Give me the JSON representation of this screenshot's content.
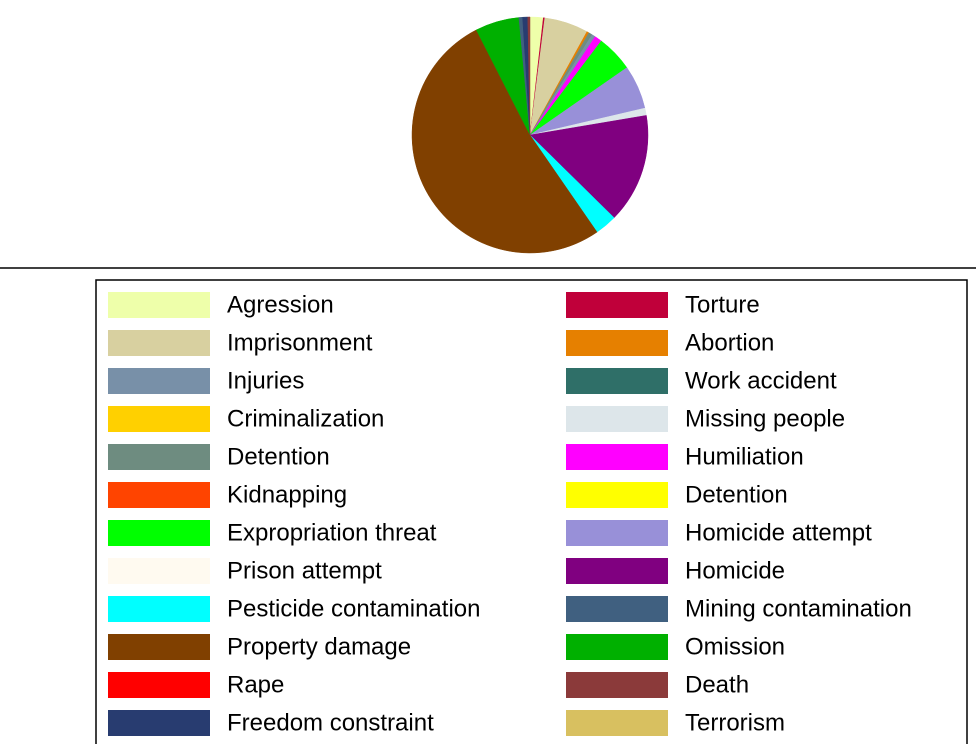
{
  "chart_data": {
    "type": "pie",
    "categories": [
      "Agression",
      "Torture",
      "Imprisonment",
      "Abortion",
      "Detention",
      "Injuries",
      "Humiliation",
      "Expropriation threat",
      "Homicide attempt",
      "Missing people",
      "Homicide",
      "Pesticide contamination",
      "Property damage",
      "Omission",
      "Mining contamination",
      "Freedom constraint",
      "Death",
      "Criminalization",
      "Kidnapping",
      "Prison attempt",
      "Rape",
      "Detention",
      "Work accident",
      "Terrorism"
    ],
    "values": [
      1.8,
      0.2,
      6,
      0.3,
      0.5,
      0.5,
      1,
      5,
      6,
      1,
      15,
      3,
      52,
      6,
      0.5,
      0.7,
      0.3,
      0,
      0,
      0,
      0,
      0,
      0,
      0
    ],
    "colors": [
      "#eeffaa",
      "#c0003a",
      "#d8d0a0",
      "#e68000",
      "#6e8c80",
      "#7890a8",
      "#ff00ff",
      "#00ff00",
      "#9890d8",
      "#dde6ea",
      "#800080",
      "#00ffff",
      "#804000",
      "#00b000",
      "#406080",
      "#283c70",
      "#8b3a3a",
      "#ffd000",
      "#ff4400",
      "#fffaf0",
      "#ff0000",
      "#ffff00",
      "#2f6f68",
      "#d8c060"
    ]
  }
}
